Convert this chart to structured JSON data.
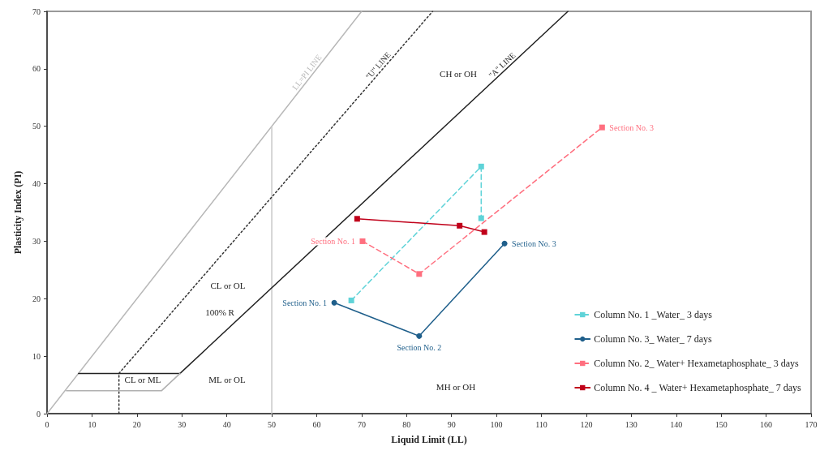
{
  "chart_data": {
    "type": "line",
    "xlabel": "Liquid Limit (LL)",
    "ylabel": "Plasticity Index (PI)",
    "xlim": [
      0,
      170
    ],
    "xticks": [
      0,
      10,
      20,
      30,
      40,
      50,
      60,
      70,
      80,
      90,
      100,
      110,
      120,
      130,
      140,
      150,
      160,
      170
    ],
    "ylim": [
      0,
      70
    ],
    "yticks": [
      0,
      10,
      20,
      30,
      40,
      50,
      60,
      70
    ],
    "grid": false,
    "legend": "bottom right",
    "series": [
      {
        "name": "LL=PI LINE",
        "color": "#b8b8b8",
        "x": [
          0,
          70
        ],
        "values": [
          0,
          70
        ],
        "marker": "none",
        "line_style": "solid"
      },
      {
        "color": "#c8c8c8",
        "x": [
          50,
          50
        ],
        "values": [
          0,
          50
        ],
        "marker": "none",
        "line_style": "solid"
      },
      {
        "name": "\"U\" LINE",
        "color": "#333333",
        "x": [
          16,
          85.8
        ],
        "values": [
          7,
          70
        ],
        "marker": "none",
        "line_style": "dotted"
      },
      {
        "color": "#333333",
        "x": [
          16,
          16
        ],
        "values": [
          0,
          7
        ],
        "marker": "none",
        "line_style": "dotted"
      },
      {
        "name": "\"A\" LINE",
        "color": "#222222",
        "x": [
          29.6,
          115.9
        ],
        "values": [
          7,
          70
        ],
        "marker": "none",
        "line_style": "solid"
      },
      {
        "color": "#222222",
        "x": [
          7,
          29.6
        ],
        "values": [
          7,
          7
        ],
        "marker": "none",
        "line_style": "solid"
      },
      {
        "color": "#b0b0b0",
        "x": [
          4.3,
          25.5,
          29.6
        ],
        "values": [
          4,
          4,
          7
        ],
        "marker": "none",
        "line_style": "solid"
      },
      {
        "name": "Column No. 1 _Water_ 3 days",
        "color": "#5fd3d8",
        "x": [
          67.7,
          96.6,
          96.6
        ],
        "values": [
          19.7,
          43,
          34
        ],
        "marker": "square",
        "line_style": "dashed"
      },
      {
        "name": "Column No. 3_ Water_ 7 days",
        "color": "#1f5f8b",
        "x": [
          63.9,
          82.8,
          101.8
        ],
        "values": [
          19.3,
          13.5,
          29.6
        ],
        "marker": "circle",
        "line_style": "solid"
      },
      {
        "name": "Column No. 2_ Water+ Hexametaphosphate_ 3 days",
        "color": "#ff6f7f",
        "x": [
          70.2,
          82.8,
          123.5
        ],
        "values": [
          30,
          24.3,
          49.8
        ],
        "marker": "square",
        "line_style": "dashed"
      },
      {
        "name": "Column No. 4 _ Water+ Hexametaphosphate_ 7 days",
        "color": "#c0001a",
        "x": [
          69,
          91.8,
          97.3
        ],
        "values": [
          33.9,
          32.7,
          31.6
        ],
        "marker": "square",
        "line_style": "solid"
      }
    ],
    "annotations": [
      {
        "text": "Section No. 1",
        "x": 63.9,
        "y": 19.3
      },
      {
        "text": "Section No. 2",
        "x": 82.8,
        "y": 13.5
      },
      {
        "text": "Section No. 3",
        "x": 101.8,
        "y": 29.6
      },
      {
        "text": "Section No. 1",
        "x": 70.2,
        "y": 30
      },
      {
        "text": "Section No. 3",
        "x": 123.5,
        "y": 49.8
      },
      "CH or OH",
      "CL or OL",
      "100% R",
      "CL or ML",
      "ML or OL",
      "MH or OH"
    ]
  }
}
